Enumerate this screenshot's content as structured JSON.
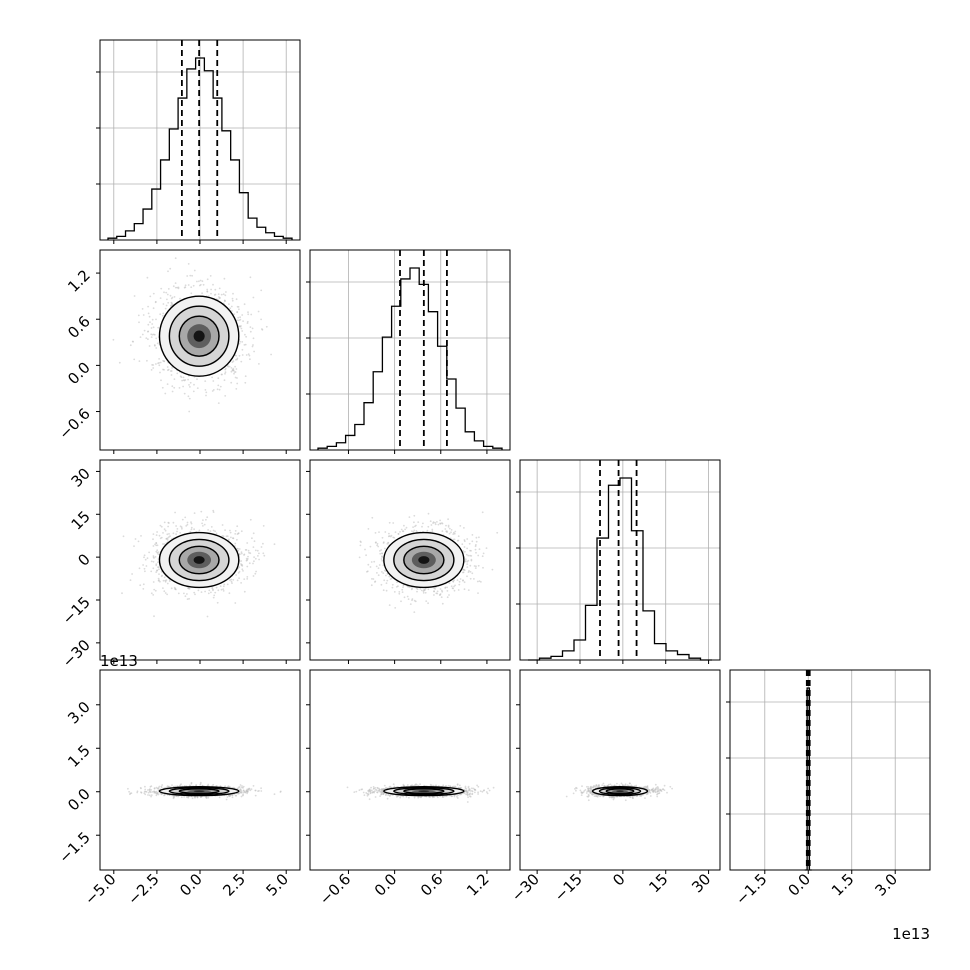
{
  "figure": {
    "type": "corner-plot",
    "background": "#ffffff",
    "line_color": "#000000",
    "grid_color": "#b0b0b0",
    "scatter_color": "#bdbdbd"
  },
  "chart_data": {
    "type": "corner",
    "parameters": [
      {
        "range": [
          -5.8,
          5.8
        ],
        "ticks": [
          -5.0,
          -2.5,
          0.0,
          2.5,
          5.0
        ],
        "tick_labels": [
          "−5.0",
          "−2.5",
          "0.0",
          "2.5",
          "5.0"
        ],
        "quantiles": [
          -1.05,
          -0.05,
          1.0
        ]
      },
      {
        "range": [
          -1.1,
          1.5
        ],
        "ticks": [
          -0.6,
          0.0,
          0.6,
          1.2
        ],
        "tick_labels": [
          "−0.6",
          "0.0",
          "0.6",
          "1.2"
        ],
        "quantiles": [
          0.07,
          0.38,
          0.68
        ]
      },
      {
        "range": [
          -36,
          34
        ],
        "ticks": [
          -30,
          -15,
          0,
          15,
          30
        ],
        "tick_labels": [
          "−30",
          "−15",
          "0",
          "15",
          "30"
        ],
        "quantiles": [
          -8,
          -1.5,
          4.8
        ]
      },
      {
        "range": [
          -2.7,
          4.2
        ],
        "ticks": [
          -1.5,
          0.0,
          1.5,
          3.0
        ],
        "tick_labels": [
          "−1.5",
          "0.0",
          "1.5",
          "3.0"
        ],
        "quantiles": [
          -0.05,
          0.0,
          0.05
        ],
        "offset_label": "1e13"
      }
    ],
    "histograms": [
      {
        "y_range": [
          0,
          1.0
        ],
        "counts": [
          0.01,
          0.02,
          0.05,
          0.09,
          0.17,
          0.28,
          0.44,
          0.61,
          0.78,
          0.94,
          1.0,
          0.93,
          0.78,
          0.6,
          0.44,
          0.26,
          0.12,
          0.07,
          0.04,
          0.02,
          0.01
        ]
      },
      {
        "y_range": [
          0,
          1.0
        ],
        "counts": [
          0.01,
          0.02,
          0.04,
          0.08,
          0.14,
          0.26,
          0.43,
          0.62,
          0.79,
          0.94,
          1.0,
          0.91,
          0.76,
          0.57,
          0.39,
          0.23,
          0.1,
          0.05,
          0.02,
          0.01
        ]
      },
      {
        "y_range": [
          0,
          1.0
        ],
        "counts": [
          0.0,
          0.01,
          0.02,
          0.05,
          0.11,
          0.3,
          0.67,
          0.96,
          1.0,
          0.71,
          0.27,
          0.09,
          0.05,
          0.03,
          0.01,
          0.0
        ]
      },
      {
        "y_range": [
          0,
          1.0
        ],
        "counts": [
          0.0,
          1.0,
          0.0
        ]
      }
    ],
    "bivariate": [
      {
        "x": 0,
        "y": 1,
        "center": [
          -0.05,
          0.38
        ],
        "spread": [
          1.15,
          0.26
        ]
      },
      {
        "x": 0,
        "y": 2,
        "center": [
          -0.05,
          -1.0
        ],
        "spread": [
          1.15,
          4.8
        ]
      },
      {
        "x": 1,
        "y": 2,
        "center": [
          0.38,
          -1.0
        ],
        "spread": [
          0.26,
          4.8
        ]
      },
      {
        "x": 0,
        "y": 3,
        "center": [
          -0.05,
          0.02
        ],
        "spread": [
          1.15,
          0.03
        ]
      },
      {
        "x": 1,
        "y": 3,
        "center": [
          0.38,
          0.02
        ],
        "spread": [
          0.26,
          0.03
        ]
      },
      {
        "x": 2,
        "y": 3,
        "center": [
          -1.0,
          0.02
        ],
        "spread": [
          4.8,
          0.03
        ]
      }
    ]
  }
}
